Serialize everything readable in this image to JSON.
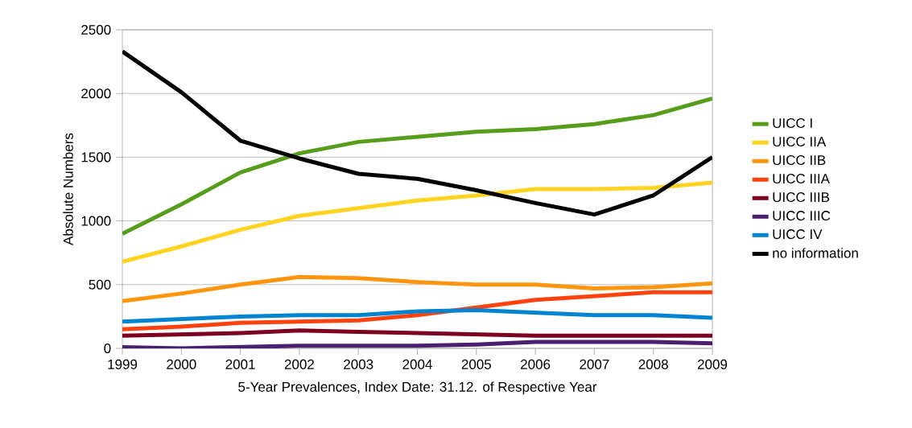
{
  "chart_data": {
    "type": "line",
    "xlabel": "5-Year Prevalences, Index Date: 31.12. of Respective Year",
    "ylabel": "Absolute Numbers",
    "x": [
      1999,
      2000,
      2001,
      2002,
      2003,
      2004,
      2005,
      2006,
      2007,
      2008,
      2009
    ],
    "xlim": [
      1999,
      2009
    ],
    "xticks": [
      1999,
      2000,
      2001,
      2002,
      2003,
      2004,
      2005,
      2006,
      2007,
      2008,
      2009
    ],
    "ylim": [
      0,
      2500
    ],
    "yticks": [
      0,
      500,
      1000,
      1500,
      2000,
      2500
    ],
    "grid": "y",
    "legend": "right",
    "marker": "none",
    "line_style": "solid",
    "series": [
      {
        "name": "UICC I",
        "color": "#579d1c",
        "values": [
          900,
          1130,
          1380,
          1530,
          1620,
          1660,
          1700,
          1720,
          1760,
          1830,
          1960
        ]
      },
      {
        "name": "UICC IIA",
        "color": "#ffd320",
        "values": [
          680,
          800,
          930,
          1040,
          1100,
          1160,
          1200,
          1250,
          1250,
          1260,
          1300
        ]
      },
      {
        "name": "UICC IIB",
        "color": "#ff950e",
        "values": [
          370,
          430,
          500,
          560,
          550,
          520,
          500,
          500,
          470,
          480,
          510
        ]
      },
      {
        "name": "UICC IIIA",
        "color": "#ff420e",
        "values": [
          150,
          170,
          200,
          210,
          220,
          260,
          320,
          380,
          410,
          440,
          440
        ]
      },
      {
        "name": "UICC IIIB",
        "color": "#7e0021",
        "values": [
          100,
          110,
          120,
          140,
          130,
          120,
          110,
          100,
          100,
          100,
          100
        ]
      },
      {
        "name": "UICC IIIC",
        "color": "#4b1f6f",
        "values": [
          10,
          0,
          10,
          20,
          20,
          20,
          30,
          50,
          50,
          50,
          40
        ]
      },
      {
        "name": "UICC IV",
        "color": "#0084d1",
        "values": [
          210,
          230,
          250,
          260,
          260,
          290,
          300,
          280,
          260,
          260,
          240
        ]
      },
      {
        "name": "no information",
        "color": "#000000",
        "values": [
          2330,
          2010,
          1630,
          1490,
          1370,
          1330,
          1240,
          1140,
          1050,
          1200,
          1500
        ]
      }
    ]
  }
}
